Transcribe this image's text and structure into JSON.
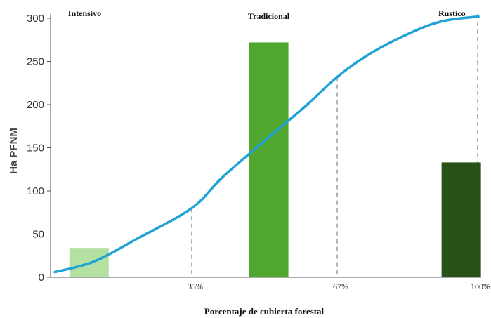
{
  "chart_data": {
    "type": "bar",
    "ylabel": "Ha PFNM",
    "xlabel": "Porcentaje de cubierta forestal",
    "ylim": [
      0,
      300
    ],
    "yticks": [
      0,
      50,
      100,
      150,
      200,
      250,
      300
    ],
    "xlim": [
      0,
      100
    ],
    "categories": [
      "Intensivo",
      "Tradicional",
      "Rustico"
    ],
    "bars": [
      {
        "category": "Intensivo",
        "x": 9,
        "value": 34,
        "color": "#b4e0a2"
      },
      {
        "category": "Tradicional",
        "x": 51,
        "value": 272,
        "color": "#4fa72f"
      },
      {
        "category": "Rustico",
        "x": 96,
        "value": 133,
        "color": "#275116"
      }
    ],
    "x_reference_lines": [
      {
        "x": 33,
        "label": "33%"
      },
      {
        "x": 67,
        "label": "67%"
      },
      {
        "x": 100,
        "label": "100%"
      }
    ],
    "curve": {
      "color": "#1fa2d6",
      "points": [
        {
          "x": 1,
          "y": 6
        },
        {
          "x": 10,
          "y": 18
        },
        {
          "x": 20,
          "y": 44
        },
        {
          "x": 33,
          "y": 80
        },
        {
          "x": 40,
          "y": 115
        },
        {
          "x": 50,
          "y": 158
        },
        {
          "x": 60,
          "y": 200
        },
        {
          "x": 67,
          "y": 232
        },
        {
          "x": 75,
          "y": 260
        },
        {
          "x": 85,
          "y": 285
        },
        {
          "x": 92,
          "y": 297
        },
        {
          "x": 100,
          "y": 302
        }
      ]
    },
    "grid": false,
    "legend": "none"
  }
}
